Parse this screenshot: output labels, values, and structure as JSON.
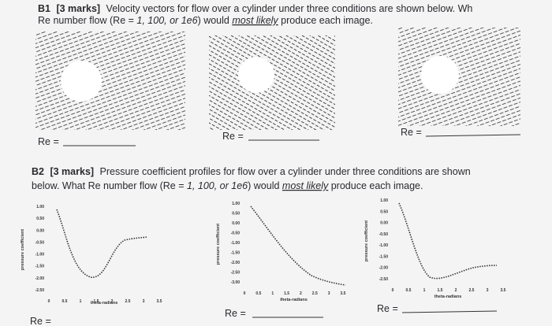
{
  "b1": {
    "label": "B1",
    "marks": "[3 marks]",
    "line1": "Velocity vectors for flow over a cylinder under three conditions are shown below. Wh",
    "line2_start": "Re number flow (Re = ",
    "options": "1, 100, or 1e6",
    "line2_mid": ") would ",
    "emphasis": "most likely",
    "line2_end": " produce each image.",
    "answers": [
      "Re =",
      "Re =",
      "Re ="
    ]
  },
  "b2": {
    "label": "B2",
    "marks": "[3 marks]",
    "line1": "Pressure coefficient profiles for flow over a cylinder under three conditions are shown",
    "line2_start": "below. What Re number flow (Re = ",
    "options": "1, 100, or 1e6",
    "line2_mid": ") would ",
    "emphasis": "most likely",
    "line2_end": " produce each image.",
    "plots": [
      {
        "y_label": "pressure coefficient",
        "x_label": "theta-radians",
        "yticks": [
          "1.00",
          "0.50",
          "0.00",
          "-0.50",
          "-1.00",
          "-1.50",
          "-2.00",
          "-2.50"
        ],
        "xticks": [
          "0",
          "0.5",
          "1",
          "1.5",
          "2",
          "2.5",
          "3",
          "3.5"
        ]
      },
      {
        "y_label": "pressure coefficient",
        "x_label": "theta-radians",
        "yticks": [
          "1.00",
          "0.50",
          "0.00",
          "-0.50",
          "-1.00",
          "-1.50",
          "-2.00",
          "-2.50",
          "-3.00"
        ],
        "xticks": [
          "0",
          "0.5",
          "1",
          "1.5",
          "2",
          "2.5",
          "3",
          "3.5"
        ]
      },
      {
        "y_label": "pressure coefficient",
        "x_label": "theta-radians",
        "yticks": [
          "1.00",
          "0.50",
          "0.00",
          "-0.50",
          "-1.00",
          "-1.50",
          "-2.00",
          "-2.50"
        ],
        "xticks": [
          "0",
          "0.5",
          "1",
          "1.5",
          "2",
          "2.5",
          "3",
          "3.5"
        ]
      }
    ],
    "answers": [
      "Re =",
      "Re =",
      "Re ="
    ]
  }
}
